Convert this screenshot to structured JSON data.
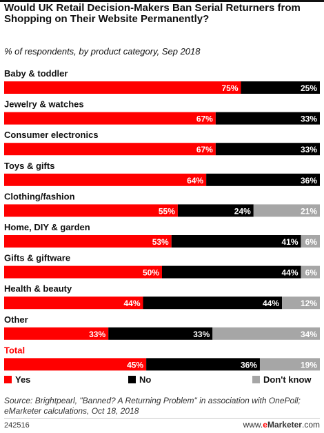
{
  "chart_data": {
    "type": "bar",
    "orientation": "horizontal",
    "stacked": true,
    "title": "Would UK Retail Decision-Makers Ban Serial Returners from Shopping on Their Website Permanently?",
    "subtitle": "% of respondents, by product category, Sep 2018",
    "categories": [
      "Baby & toddler",
      "Jewelry & watches",
      "Consumer electronics",
      "Toys & gifts",
      "Clothing/fashion",
      "Home, DIY & garden",
      "Gifts & giftware",
      "Health & beauty",
      "Other",
      "Total"
    ],
    "highlighted_category": "Total",
    "series": [
      {
        "name": "Yes",
        "color": "#ff0000",
        "values": [
          75,
          67,
          67,
          64,
          55,
          53,
          50,
          44,
          33,
          45
        ]
      },
      {
        "name": "No",
        "color": "#000000",
        "values": [
          25,
          33,
          33,
          36,
          24,
          41,
          44,
          44,
          33,
          36
        ]
      },
      {
        "name": "Don't know",
        "color": "#a6a6a6",
        "values": [
          0,
          0,
          0,
          0,
          21,
          6,
          6,
          12,
          34,
          19
        ]
      }
    ],
    "value_suffix": "%",
    "xlim": [
      0,
      100
    ],
    "grid": false,
    "legend_position": "bottom"
  },
  "source": {
    "text": "Source: Brightpearl, \"Banned? A Returning Problem\" in association with OnePoll; eMarketer calculations, Oct 18, 2018"
  },
  "footer": {
    "chart_id": "242516",
    "brand_prefix": "www.",
    "brand_e": "e",
    "brand_rest": "Marketer",
    "brand_suffix": ".com"
  }
}
